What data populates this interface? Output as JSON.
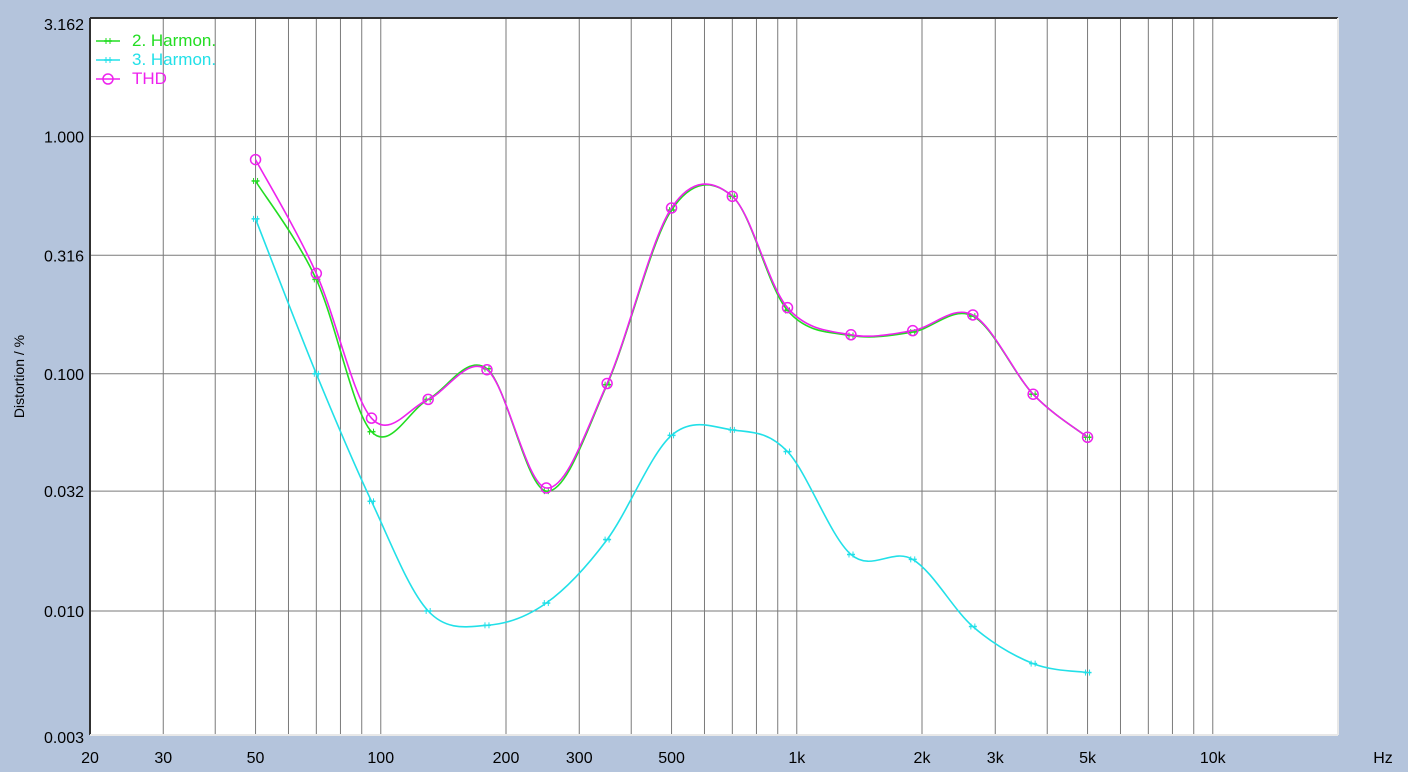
{
  "chart_data": {
    "type": "line",
    "x_scale": "log",
    "y_scale": "log",
    "xlim": [
      20,
      20000
    ],
    "ylim": [
      0.003,
      3.162
    ],
    "xlabel": "Hz",
    "ylabel": "Distortion / %",
    "x_ticks": [
      {
        "value": 20,
        "label": "20"
      },
      {
        "value": 30,
        "label": "30"
      },
      {
        "value": 50,
        "label": "50"
      },
      {
        "value": 100,
        "label": "100"
      },
      {
        "value": 200,
        "label": "200"
      },
      {
        "value": 300,
        "label": "300"
      },
      {
        "value": 500,
        "label": "500"
      },
      {
        "value": 1000,
        "label": "1k"
      },
      {
        "value": 2000,
        "label": "2k"
      },
      {
        "value": 3000,
        "label": "3k"
      },
      {
        "value": 5000,
        "label": "5k"
      },
      {
        "value": 10000,
        "label": "10k"
      }
    ],
    "y_ticks": [
      {
        "value": 3.162,
        "label": "3.162"
      },
      {
        "value": 1.0,
        "label": "1.000"
      },
      {
        "value": 0.316,
        "label": "0.316"
      },
      {
        "value": 0.1,
        "label": "0.100"
      },
      {
        "value": 0.032,
        "label": "0.032"
      },
      {
        "value": 0.01,
        "label": "0.010"
      },
      {
        "value": 0.003,
        "label": "0.003"
      }
    ],
    "grid": true,
    "legend_position": "top-left",
    "series": [
      {
        "name": "2. Harmon.",
        "color": "#22dd22",
        "marker": "dash",
        "x": [
          50,
          70,
          95,
          130,
          180,
          250,
          350,
          500,
          700,
          950,
          1350,
          1900,
          2650,
          3700,
          5000
        ],
        "y": [
          0.65,
          0.25,
          0.057,
          0.078,
          0.105,
          0.032,
          0.09,
          0.49,
          0.56,
          0.185,
          0.145,
          0.15,
          0.175,
          0.082,
          0.054
        ]
      },
      {
        "name": "3. Harmon.",
        "color": "#22e0e8",
        "marker": "dash",
        "x": [
          50,
          70,
          95,
          130,
          180,
          250,
          350,
          500,
          700,
          950,
          1350,
          1900,
          2650,
          3700,
          5000
        ],
        "y": [
          0.45,
          0.1,
          0.029,
          0.01,
          0.0087,
          0.0108,
          0.02,
          0.055,
          0.058,
          0.047,
          0.0173,
          0.0165,
          0.0086,
          0.006,
          0.0055
        ]
      },
      {
        "name": "THD",
        "color": "#ee22ee",
        "marker": "circle",
        "x": [
          50,
          70,
          95,
          130,
          180,
          250,
          350,
          500,
          700,
          950,
          1350,
          1900,
          2650,
          3700,
          5000
        ],
        "y": [
          0.8,
          0.265,
          0.065,
          0.078,
          0.104,
          0.033,
          0.091,
          0.5,
          0.56,
          0.19,
          0.146,
          0.152,
          0.177,
          0.082,
          0.054
        ]
      }
    ]
  }
}
